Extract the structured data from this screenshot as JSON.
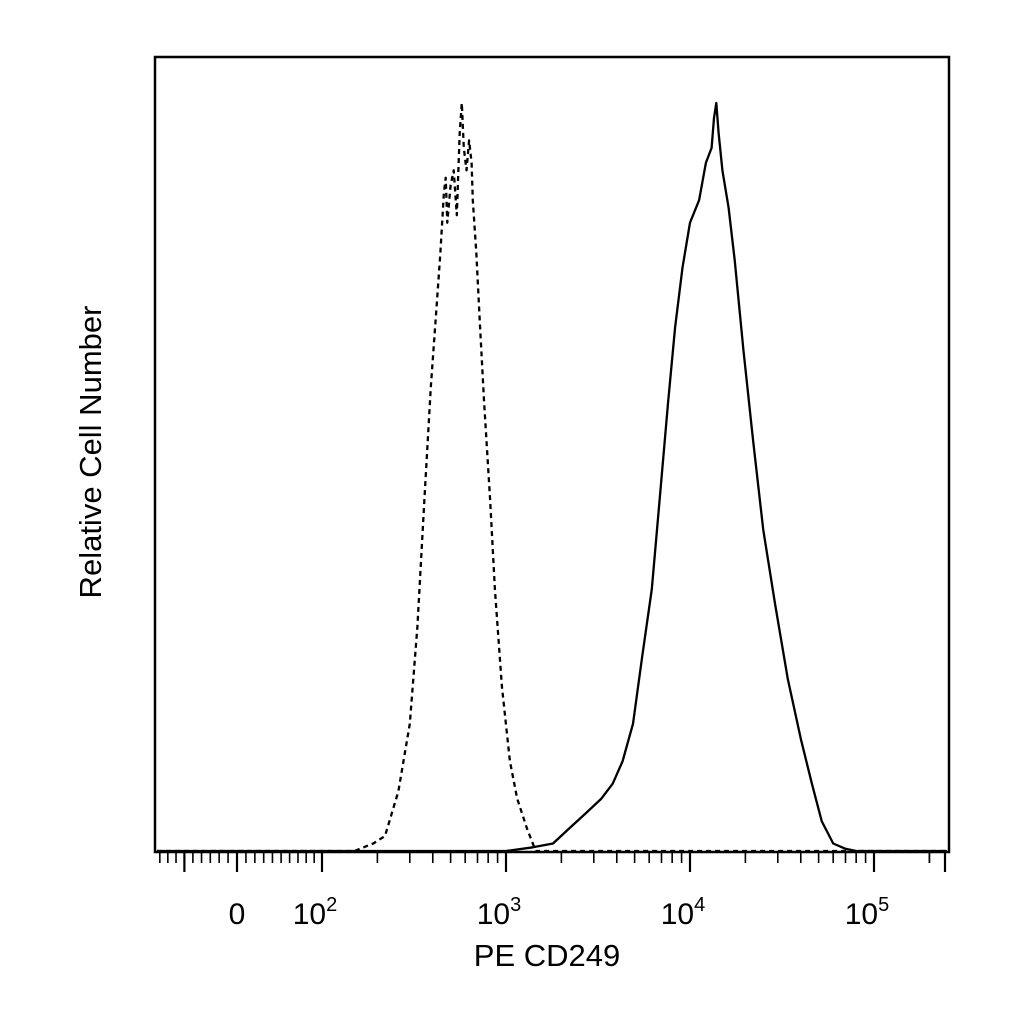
{
  "chart_data": {
    "type": "line",
    "title": "",
    "xlabel": "PE CD249",
    "ylabel": "Relative Cell Number",
    "x_scale": "biexponential",
    "xlim": [
      -60,
      250000
    ],
    "ylim": [
      0,
      100
    ],
    "grid": false,
    "x_ticks": [
      {
        "value": 0,
        "base": "0",
        "exp": ""
      },
      {
        "value": 100,
        "base": "10",
        "exp": "2"
      },
      {
        "value": 1000,
        "base": "10",
        "exp": "3"
      },
      {
        "value": 10000,
        "base": "10",
        "exp": "4"
      },
      {
        "value": 100000,
        "base": "10",
        "exp": "5"
      }
    ],
    "series": [
      {
        "style": "dashed",
        "color": "#000000",
        "points": [
          [
            150,
            0
          ],
          [
            190,
            1
          ],
          [
            220,
            2
          ],
          [
            260,
            8
          ],
          [
            300,
            17
          ],
          [
            330,
            30
          ],
          [
            360,
            47
          ],
          [
            390,
            62
          ],
          [
            420,
            73
          ],
          [
            440,
            80
          ],
          [
            460,
            88
          ],
          [
            470,
            90
          ],
          [
            480,
            84
          ],
          [
            500,
            89
          ],
          [
            520,
            91
          ],
          [
            540,
            85
          ],
          [
            560,
            96
          ],
          [
            575,
            100
          ],
          [
            590,
            94
          ],
          [
            610,
            91
          ],
          [
            630,
            95
          ],
          [
            650,
            92
          ],
          [
            660,
            87
          ],
          [
            690,
            80
          ],
          [
            720,
            71
          ],
          [
            760,
            60
          ],
          [
            820,
            47
          ],
          [
            870,
            35
          ],
          [
            950,
            22
          ],
          [
            1050,
            12
          ],
          [
            1150,
            7
          ],
          [
            1300,
            3
          ],
          [
            1450,
            0
          ]
        ]
      },
      {
        "style": "solid",
        "color": "#000000",
        "points": [
          [
            1000,
            0
          ],
          [
            1400,
            0.5
          ],
          [
            1800,
            1
          ],
          [
            2200,
            3
          ],
          [
            2700,
            5
          ],
          [
            3300,
            7
          ],
          [
            3800,
            9
          ],
          [
            4300,
            12
          ],
          [
            4900,
            17
          ],
          [
            5500,
            26
          ],
          [
            6200,
            35
          ],
          [
            6900,
            48
          ],
          [
            7600,
            60
          ],
          [
            8300,
            70
          ],
          [
            9100,
            78
          ],
          [
            10000,
            84
          ],
          [
            11200,
            87
          ],
          [
            12200,
            92
          ],
          [
            13100,
            94
          ],
          [
            13500,
            98
          ],
          [
            13900,
            100
          ],
          [
            14300,
            96
          ],
          [
            15000,
            91
          ],
          [
            16200,
            86
          ],
          [
            17500,
            79
          ],
          [
            19500,
            67
          ],
          [
            22000,
            55
          ],
          [
            25000,
            43
          ],
          [
            29000,
            33
          ],
          [
            34000,
            23
          ],
          [
            40000,
            15
          ],
          [
            46000,
            9
          ],
          [
            52000,
            4
          ],
          [
            60000,
            1
          ],
          [
            70000,
            0.3
          ],
          [
            80000,
            0
          ]
        ]
      }
    ]
  }
}
